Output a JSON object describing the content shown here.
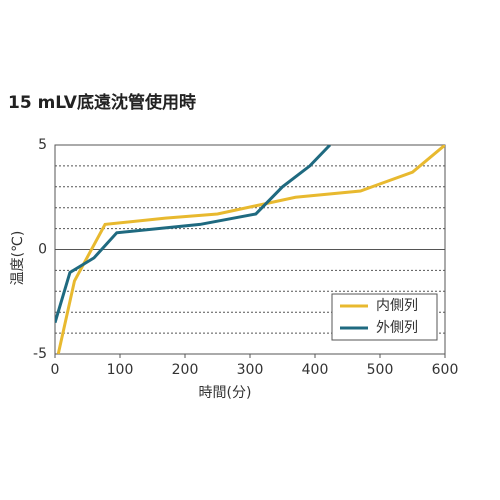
{
  "chart_data": {
    "type": "line",
    "title": "15 mLV底遠沈管使用時",
    "x_label": "時間(分)",
    "y_label": "温度(℃)",
    "xlim": [
      0,
      600
    ],
    "xticks": [
      0,
      100,
      200,
      300,
      400,
      500,
      600
    ],
    "ylim": [
      -5,
      5
    ],
    "yticks": [
      -5,
      0,
      5
    ],
    "grid_yticks": [
      -4,
      -3,
      -2,
      -1,
      1,
      2,
      3,
      4
    ],
    "grid": true,
    "legend": "lower right",
    "series": [
      {
        "name": "内側列",
        "color": "#e8b92f",
        "x": [
          5,
          30,
          77,
          170,
          250,
          310,
          370,
          470,
          550,
          600
        ],
        "values": [
          -5,
          -1.5,
          1.2,
          1.5,
          1.7,
          2.1,
          2.5,
          2.8,
          3.7,
          5
        ]
      },
      {
        "name": "外側列",
        "color": "#1f6a80",
        "x": [
          0,
          23,
          60,
          95,
          223,
          309,
          350,
          392,
          423
        ],
        "values": [
          -3.5,
          -1.1,
          -0.4,
          0.8,
          1.2,
          1.7,
          3.0,
          4.0,
          5.0
        ]
      }
    ]
  }
}
